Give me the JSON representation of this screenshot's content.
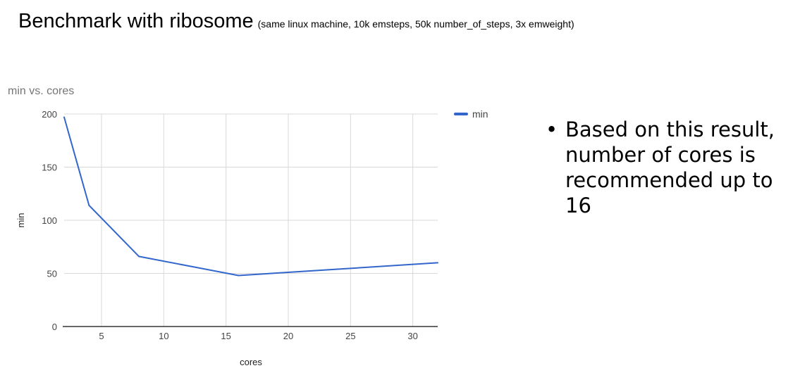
{
  "slide": {
    "title": "Benchmark with ribosome",
    "subtitle": "(same linux machine, 10k emsteps, 50k number_of_steps, 3x emweight)",
    "bullets": [
      "Based on this result, number of cores is recommended up to 16"
    ]
  },
  "chart_data": {
    "type": "line",
    "title": "min vs. cores",
    "xlabel": "cores",
    "ylabel": "min",
    "xlim": [
      2,
      32
    ],
    "ylim": [
      0,
      200
    ],
    "xticks": [
      5,
      10,
      15,
      20,
      25,
      30
    ],
    "yticks": [
      0,
      50,
      100,
      150,
      200
    ],
    "grid": true,
    "legend_position": "right",
    "series": [
      {
        "name": "min",
        "color": "#3366cc",
        "x": [
          2,
          4,
          8,
          16,
          32
        ],
        "y": [
          197,
          114,
          66,
          48,
          60
        ]
      }
    ]
  }
}
